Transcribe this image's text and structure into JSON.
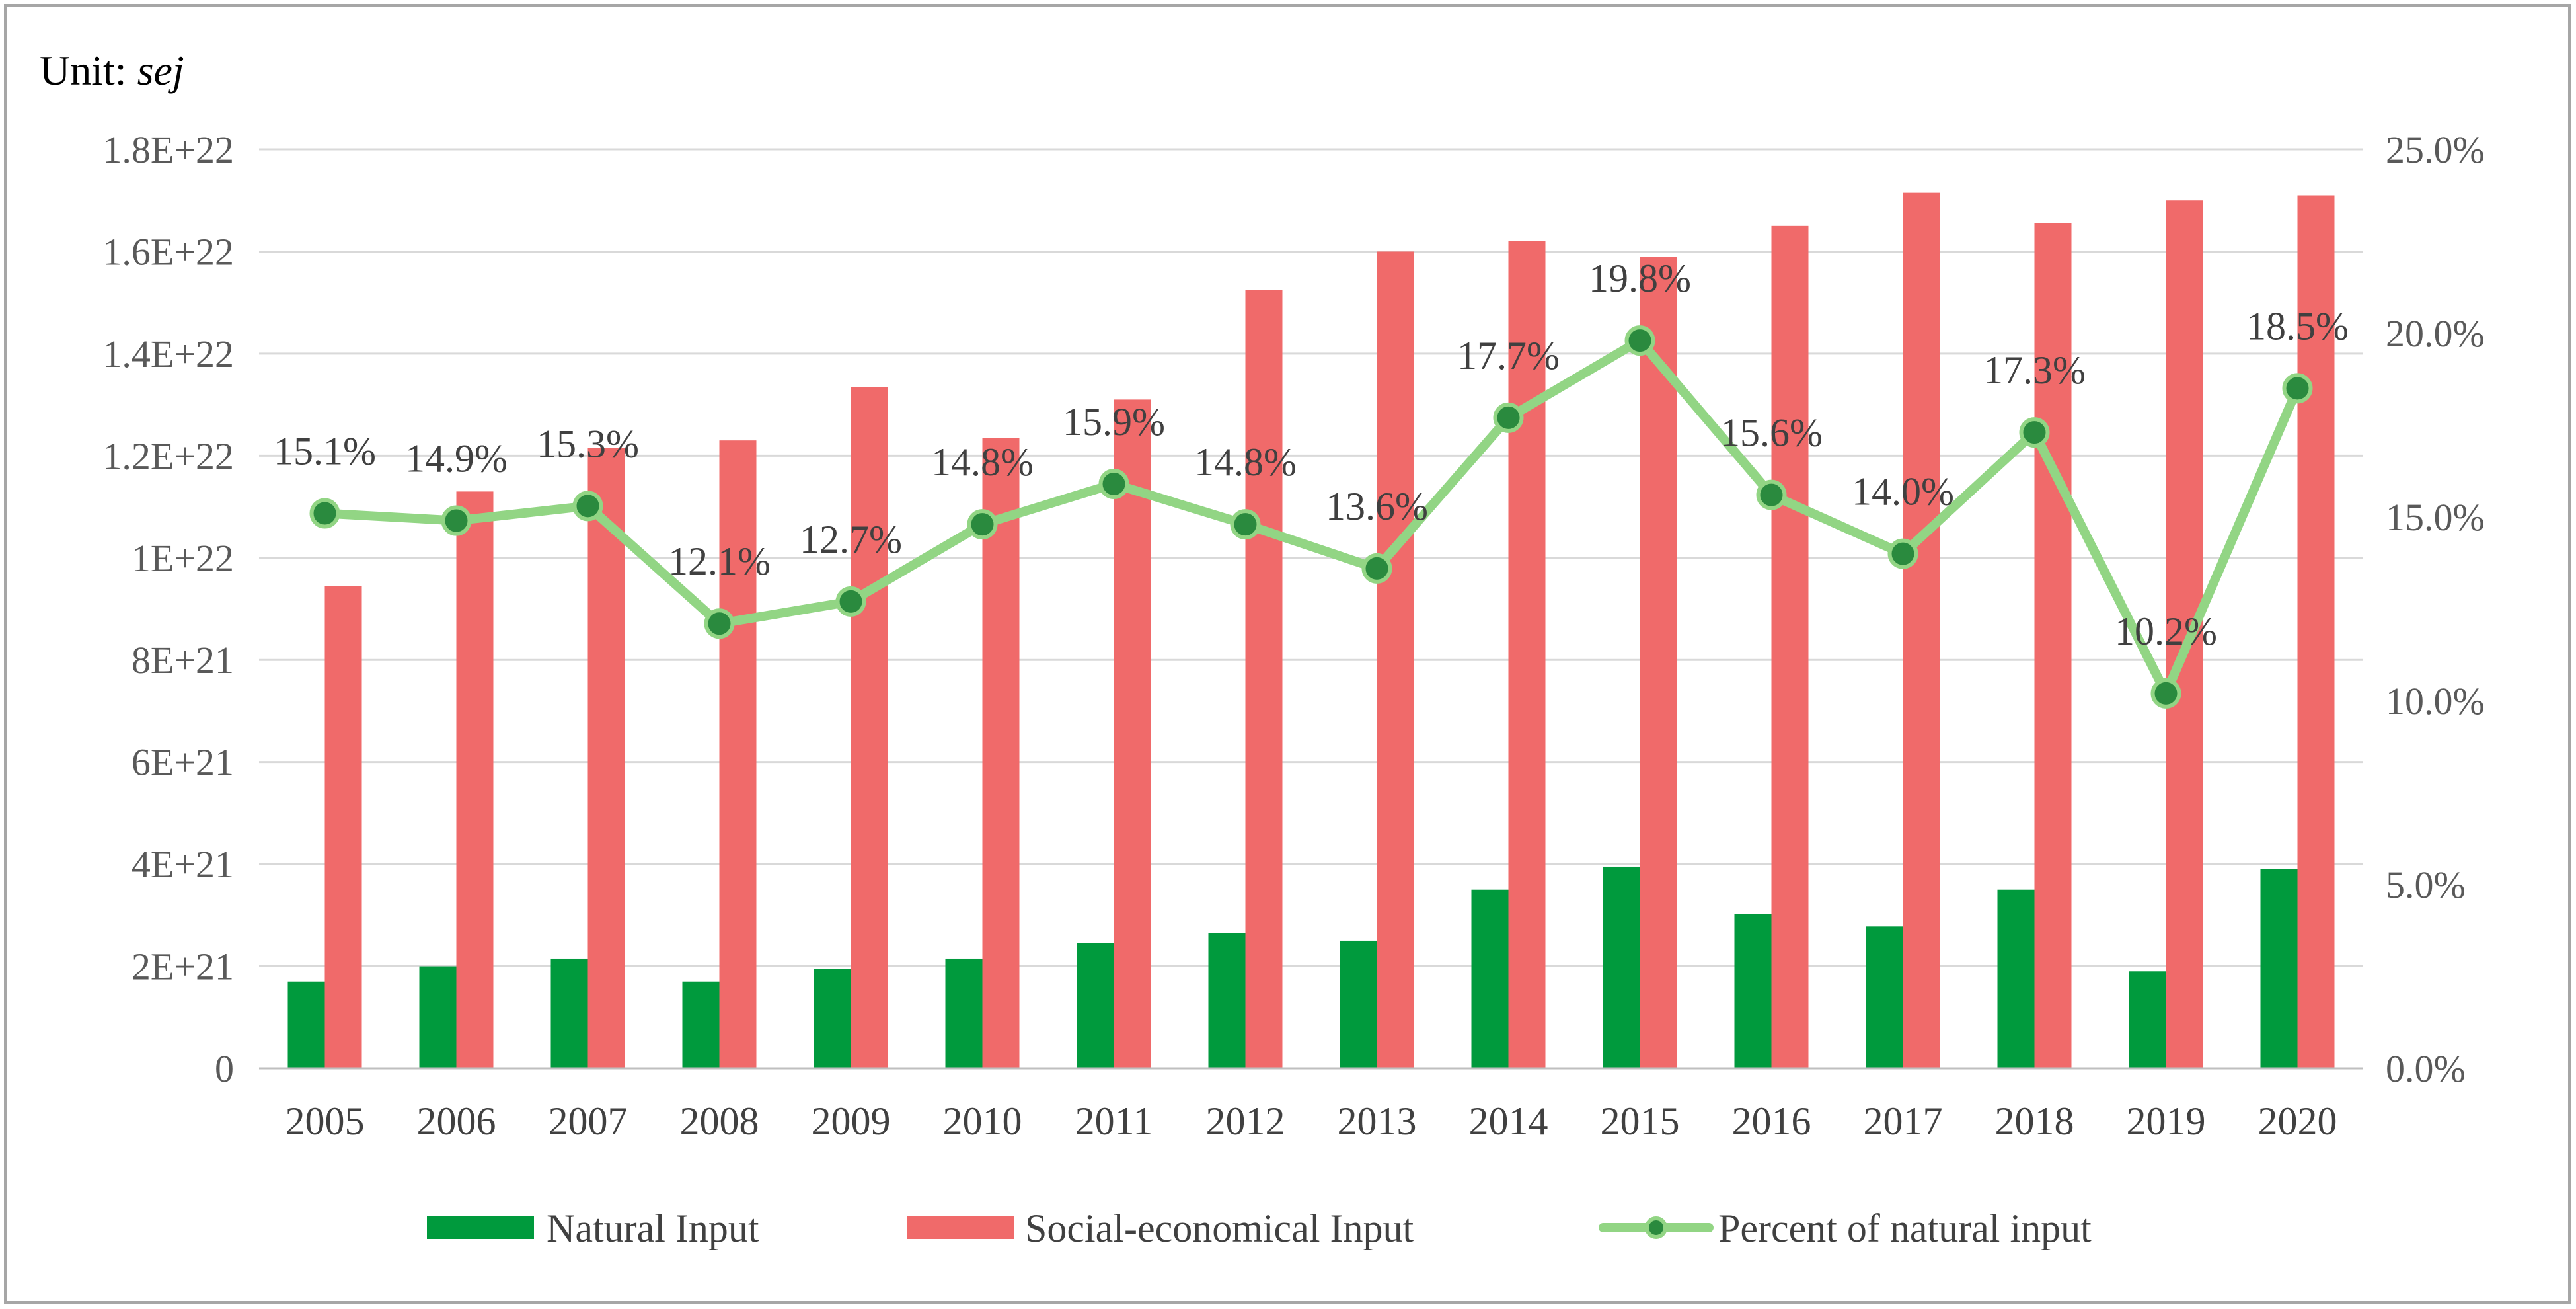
{
  "colors": {
    "natural": "#009a3d",
    "social": "#f06a6a",
    "percent_line": "#92d584",
    "percent_marker_fill": "#2a8a3e",
    "grid": "#d9d9d9",
    "axis": "#bfbfbf",
    "frame": "#a6a6a6"
  },
  "chart_data": {
    "type": "bar+line",
    "unit_label_prefix": "Unit: ",
    "unit_label_unit": "sej",
    "categories": [
      "2005",
      "2006",
      "2007",
      "2008",
      "2009",
      "2010",
      "2011",
      "2012",
      "2013",
      "2014",
      "2015",
      "2016",
      "2017",
      "2018",
      "2019",
      "2020"
    ],
    "series": [
      {
        "name": "Natural Input",
        "type": "bar",
        "axis": "left",
        "values": [
          1.7e+21,
          2e+21,
          2.15e+21,
          1.7e+21,
          1.95e+21,
          2.15e+21,
          2.45e+21,
          2.65e+21,
          2.5e+21,
          3.5e+21,
          3.95e+21,
          3.02e+21,
          2.78e+21,
          3.5e+21,
          1.9e+21,
          3.9e+21
        ]
      },
      {
        "name": "Social-economical Input",
        "type": "bar",
        "axis": "left",
        "values": [
          9.45e+21,
          1.13e+22,
          1.215e+22,
          1.23e+22,
          1.335e+22,
          1.235e+22,
          1.31e+22,
          1.525e+22,
          1.6e+22,
          1.62e+22,
          1.59e+22,
          1.65e+22,
          1.715e+22,
          1.655e+22,
          1.7e+22,
          1.71e+22
        ]
      },
      {
        "name": "Percent of natural input",
        "type": "line",
        "axis": "right",
        "values": [
          15.1,
          14.9,
          15.3,
          12.1,
          12.7,
          14.8,
          15.9,
          14.8,
          13.6,
          17.7,
          19.8,
          15.6,
          14.0,
          17.3,
          10.2,
          18.5
        ],
        "labels": [
          "15.1%",
          "14.9%",
          "15.3%",
          "12.1%",
          "12.7%",
          "14.8%",
          "15.9%",
          "14.8%",
          "13.6%",
          "17.7%",
          "19.8%",
          "15.6%",
          "14.0%",
          "17.3%",
          "10.2%",
          "18.5%"
        ]
      }
    ],
    "left_axis": {
      "min": 0,
      "max": 1.8e+22,
      "ticks": [
        0,
        2e+21,
        4e+21,
        6e+21,
        8e+21,
        1e+22,
        1.2e+22,
        1.4e+22,
        1.6e+22,
        1.8e+22
      ],
      "tick_labels": [
        "0",
        "2E+21",
        "4E+21",
        "6E+21",
        "8E+21",
        "1E+22",
        "1.2E+22",
        "1.4E+22",
        "1.6E+22",
        "1.8E+22"
      ]
    },
    "right_axis": {
      "min": 0,
      "max": 25,
      "ticks": [
        0,
        5,
        10,
        15,
        20,
        25
      ],
      "tick_labels": [
        "0.0%",
        "5.0%",
        "10.0%",
        "15.0%",
        "20.0%",
        "25.0%"
      ]
    },
    "grid": true,
    "legend_position": "bottom"
  }
}
